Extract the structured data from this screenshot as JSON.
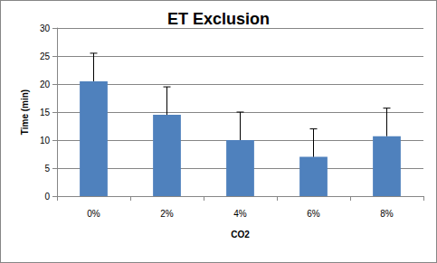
{
  "chart_data": {
    "type": "bar",
    "title": "ET Exclusion",
    "x_label": "CO2",
    "y_label": "Time (min)",
    "categories": [
      "0%",
      "2%",
      "4%",
      "6%",
      "8%"
    ],
    "values": [
      20.5,
      14.5,
      10.0,
      7.0,
      10.7
    ],
    "errors": [
      5.0,
      5.0,
      5.0,
      5.0,
      5.0
    ],
    "color": "#4f81bd",
    "ylim": [
      0,
      30
    ],
    "yticks": [
      0,
      5,
      10,
      15,
      20,
      25,
      30
    ],
    "grid": true
  }
}
